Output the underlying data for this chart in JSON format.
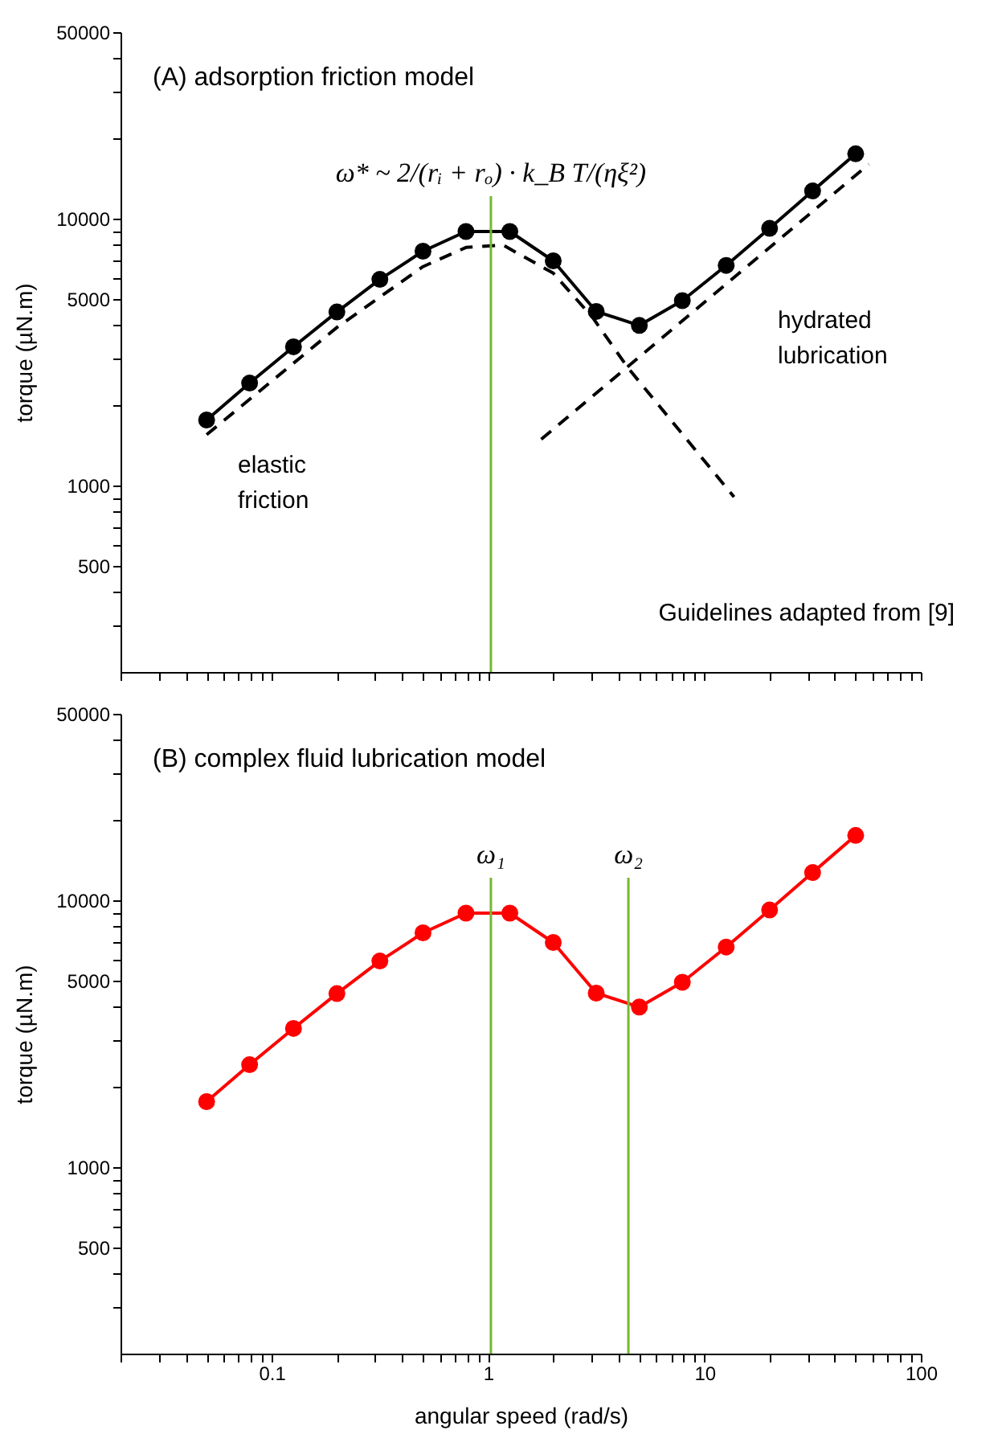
{
  "chart_data": [
    {
      "type": "line",
      "title": "(A) adsorption friction model",
      "ylabel": "torque (µN.m)",
      "x": [
        0.05,
        0.079,
        0.126,
        0.2,
        0.316,
        0.5,
        0.79,
        1.26,
        2,
        3.16,
        5,
        7.9,
        12.6,
        20,
        31.6,
        50
      ],
      "series": [
        {
          "color": "#000000",
          "marker": "circle",
          "line_style": "solid",
          "values": [
            1760,
            2420,
            3310,
            4470,
            5920,
            7550,
            8950,
            8950,
            6950,
            4490,
            3980,
            4930,
            6680,
            9200,
            12700,
            17500
          ]
        },
        {
          "color": "#000000",
          "marker": "none",
          "line_style": "dashed",
          "x": [
            0.05,
            0.2,
            0.5,
            0.79,
            1.17,
            2,
            3.05,
            4.43,
            13.7
          ],
          "values": [
            1550,
            3910,
            6610,
            7800,
            7970,
            6250,
            4250,
            2760,
            906
          ]
        },
        {
          "color": "#000000",
          "marker": "none",
          "line_style": "dashed",
          "x": [
            1.76,
            57.5
          ],
          "values": [
            1490,
            16000
          ]
        }
      ],
      "ref_lines": [
        {
          "axis": "x",
          "value": 1.03,
          "label": "ω* ~ 2/(rᵢ + rₒ) · k_B T/(ηξ²)",
          "color": "#77b72e"
        }
      ],
      "annotations": [
        "elastic friction",
        "hydrated lubrication",
        "Guidelines adapted from [9]"
      ],
      "log": "xy",
      "grid": false,
      "tick_labels": "y",
      "xlim": [
        0.02,
        100
      ],
      "xticks": [
        {
          "value": 0.02,
          "label": null
        },
        {
          "value": 0.03,
          "label": null
        },
        {
          "value": 0.04,
          "label": null
        },
        {
          "value": 0.05,
          "label": null
        },
        {
          "value": 0.06,
          "label": null
        },
        {
          "value": 0.07,
          "label": null
        },
        {
          "value": 0.08,
          "label": null
        },
        {
          "value": 0.09,
          "label": null
        },
        0.1,
        {
          "value": 0.2,
          "label": null
        },
        {
          "value": 0.3,
          "label": null
        },
        {
          "value": 0.4,
          "label": null
        },
        {
          "value": 0.5,
          "label": null
        },
        {
          "value": 0.6,
          "label": null
        },
        {
          "value": 0.7,
          "label": null
        },
        {
          "value": 0.8,
          "label": null
        },
        {
          "value": 0.9,
          "label": null
        },
        1,
        {
          "value": 2,
          "label": null
        },
        {
          "value": 3,
          "label": null
        },
        {
          "value": 4,
          "label": null
        },
        {
          "value": 5,
          "label": null
        },
        {
          "value": 6,
          "label": null
        },
        {
          "value": 7,
          "label": null
        },
        {
          "value": 8,
          "label": null
        },
        {
          "value": 9,
          "label": null
        },
        10,
        {
          "value": 20,
          "label": null
        },
        {
          "value": 30,
          "label": null
        },
        {
          "value": 40,
          "label": null
        },
        {
          "value": 50,
          "label": null
        },
        {
          "value": 60,
          "label": null
        },
        {
          "value": 70,
          "label": null
        },
        {
          "value": 80,
          "label": null
        },
        {
          "value": 90,
          "label": null
        },
        100
      ],
      "ylim": [
        200,
        50000
      ],
      "yticks": [
        {
          "value": 300,
          "label": null
        },
        {
          "value": 400,
          "label": null
        },
        500,
        {
          "value": 600,
          "label": null
        },
        {
          "value": 700,
          "label": null
        },
        {
          "value": 800,
          "label": null
        },
        {
          "value": 900,
          "label": null
        },
        1000,
        {
          "value": 2000,
          "label": null
        },
        {
          "value": 3000,
          "label": null
        },
        {
          "value": 4000,
          "label": null
        },
        5000,
        {
          "value": 6000,
          "label": null
        },
        {
          "value": 7000,
          "label": null
        },
        {
          "value": 8000,
          "label": null
        },
        {
          "value": 9000,
          "label": null
        },
        10000,
        {
          "value": 20000,
          "label": null
        },
        {
          "value": 30000,
          "label": null
        },
        {
          "value": 40000,
          "label": null
        },
        50000
      ]
    },
    {
      "type": "line",
      "title": "(B) complex fluid lubrication model",
      "xlabel": "angular speed (rad/s)",
      "ylabel": "torque (µN.m)",
      "x": [
        0.05,
        0.079,
        0.126,
        0.2,
        0.316,
        0.5,
        0.79,
        1.26,
        2,
        3.16,
        5,
        7.9,
        12.6,
        20,
        31.6,
        50
      ],
      "series": [
        {
          "color": "#ff0000",
          "marker": "circle",
          "line_style": "solid",
          "values": [
            1760,
            2420,
            3310,
            4470,
            5920,
            7550,
            8950,
            8950,
            6950,
            4490,
            3980,
            4930,
            6680,
            9200,
            12700,
            17500
          ]
        }
      ],
      "ref_lines": [
        {
          "axis": "x",
          "value": 1.03,
          "label": "ω₁",
          "color": "#77b72e"
        },
        {
          "axis": "x",
          "value": 4.45,
          "label": "ω₂",
          "color": "#77b72e"
        }
      ],
      "log": "xy",
      "grid": false,
      "xlim": [
        0.02,
        100
      ],
      "xticks": [
        {
          "value": 0.02,
          "label": null
        },
        {
          "value": 0.03,
          "label": null
        },
        {
          "value": 0.04,
          "label": null
        },
        {
          "value": 0.05,
          "label": null
        },
        {
          "value": 0.06,
          "label": null
        },
        {
          "value": 0.07,
          "label": null
        },
        {
          "value": 0.08,
          "label": null
        },
        {
          "value": 0.09,
          "label": null
        },
        0.1,
        {
          "value": 0.2,
          "label": null
        },
        {
          "value": 0.3,
          "label": null
        },
        {
          "value": 0.4,
          "label": null
        },
        {
          "value": 0.5,
          "label": null
        },
        {
          "value": 0.6,
          "label": null
        },
        {
          "value": 0.7,
          "label": null
        },
        {
          "value": 0.8,
          "label": null
        },
        {
          "value": 0.9,
          "label": null
        },
        1,
        {
          "value": 2,
          "label": null
        },
        {
          "value": 3,
          "label": null
        },
        {
          "value": 4,
          "label": null
        },
        {
          "value": 5,
          "label": null
        },
        {
          "value": 6,
          "label": null
        },
        {
          "value": 7,
          "label": null
        },
        {
          "value": 8,
          "label": null
        },
        {
          "value": 9,
          "label": null
        },
        10,
        {
          "value": 20,
          "label": null
        },
        {
          "value": 30,
          "label": null
        },
        {
          "value": 40,
          "label": null
        },
        {
          "value": 50,
          "label": null
        },
        {
          "value": 60,
          "label": null
        },
        {
          "value": 70,
          "label": null
        },
        {
          "value": 80,
          "label": null
        },
        {
          "value": 90,
          "label": null
        },
        100
      ],
      "ylim": [
        200,
        50000
      ],
      "yticks": [
        {
          "value": 300,
          "label": null
        },
        {
          "value": 400,
          "label": null
        },
        500,
        {
          "value": 600,
          "label": null
        },
        {
          "value": 700,
          "label": null
        },
        {
          "value": 800,
          "label": null
        },
        {
          "value": 900,
          "label": null
        },
        1000,
        {
          "value": 2000,
          "label": null
        },
        {
          "value": 3000,
          "label": null
        },
        {
          "value": 4000,
          "label": null
        },
        5000,
        {
          "value": 6000,
          "label": null
        },
        {
          "value": 7000,
          "label": null
        },
        {
          "value": 8000,
          "label": null
        },
        {
          "value": 9000,
          "label": null
        },
        10000,
        {
          "value": 20000,
          "label": null
        },
        {
          "value": 30000,
          "label": null
        },
        {
          "value": 40000,
          "label": null
        },
        50000
      ]
    }
  ]
}
